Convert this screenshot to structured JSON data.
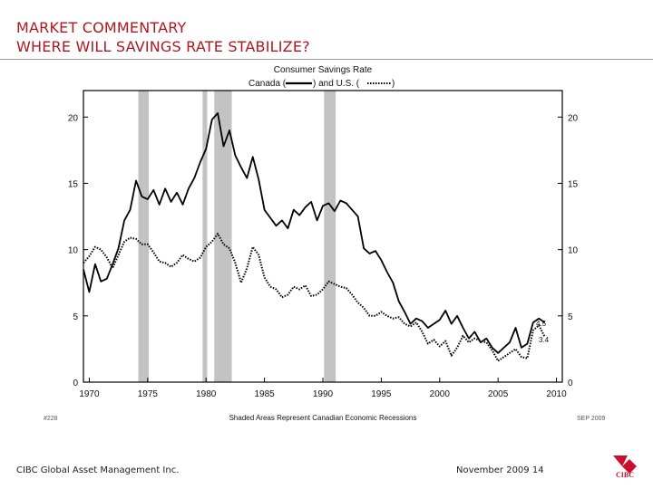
{
  "header": {
    "line1": "MARKET COMMENTARY",
    "line2": "WHERE WILL SAVINGS RATE STABILIZE?"
  },
  "footer": {
    "left": "CIBC Global Asset Management Inc.",
    "right": "November 2009 14",
    "logo_text": "CIBC"
  },
  "chart_data": {
    "type": "line",
    "title": "Consumer Savings Rate",
    "legend": [
      "Canada (",
      ") and U.S. (",
      ")"
    ],
    "series": [
      {
        "name": "Canada",
        "style": "solid",
        "x": [
          1969.5,
          1970,
          1970.5,
          1971,
          1971.5,
          1972,
          1972.5,
          1973,
          1973.5,
          1974,
          1974.5,
          1975,
          1975.5,
          1976,
          1976.5,
          1977,
          1977.5,
          1978,
          1978.5,
          1979,
          1979.5,
          1980,
          1980.5,
          1981,
          1981.5,
          1982,
          1982.5,
          1983,
          1983.5,
          1984,
          1984.5,
          1985,
          1985.5,
          1986,
          1986.5,
          1987,
          1987.5,
          1988,
          1988.5,
          1989,
          1989.5,
          1990,
          1990.5,
          1991,
          1991.5,
          1992,
          1992.5,
          1993,
          1993.5,
          1994,
          1994.5,
          1995,
          1995.5,
          1996,
          1996.5,
          1997,
          1997.5,
          1998,
          1998.5,
          1999,
          1999.5,
          2000,
          2000.5,
          2001,
          2001.5,
          2002,
          2002.5,
          2003,
          2003.5,
          2004,
          2004.5,
          2005,
          2005.5,
          2006,
          2006.5,
          2007,
          2007.5,
          2008,
          2008.5,
          2009
        ],
        "values": [
          8.5,
          6.8,
          8.9,
          7.6,
          7.8,
          8.9,
          10.1,
          12.2,
          13.0,
          15.2,
          14.0,
          13.8,
          14.5,
          13.4,
          14.6,
          13.6,
          14.3,
          13.4,
          14.6,
          15.4,
          16.6,
          17.6,
          19.8,
          20.3,
          17.8,
          19.0,
          17.1,
          16.2,
          15.4,
          17.0,
          15.3,
          13.0,
          12.4,
          11.8,
          12.2,
          11.6,
          13.0,
          12.6,
          13.2,
          13.6,
          12.2,
          13.3,
          13.5,
          12.9,
          13.7,
          13.5,
          13.0,
          12.5,
          10.1,
          9.7,
          9.9,
          9.2,
          8.3,
          7.5,
          6.1,
          5.3,
          4.4,
          4.8,
          4.6,
          4.1,
          4.4,
          4.7,
          5.4,
          4.4,
          5.0,
          4.1,
          3.3,
          3.8,
          3.0,
          3.3,
          2.6,
          2.2,
          2.6,
          3.0,
          4.1,
          2.6,
          2.9,
          4.5,
          4.8,
          4.5
        ]
      },
      {
        "name": "U.S.",
        "style": "dotted",
        "x": [
          1969.5,
          1970,
          1970.5,
          1971,
          1971.5,
          1972,
          1972.5,
          1973,
          1973.5,
          1974,
          1974.5,
          1975,
          1975.5,
          1976,
          1976.5,
          1977,
          1977.5,
          1978,
          1978.5,
          1979,
          1979.5,
          1980,
          1980.5,
          1981,
          1981.5,
          1982,
          1982.5,
          1983,
          1983.5,
          1984,
          1984.5,
          1985,
          1985.5,
          1986,
          1986.5,
          1987,
          1987.5,
          1988,
          1988.5,
          1989,
          1989.5,
          1990,
          1990.5,
          1991,
          1991.5,
          1992,
          1992.5,
          1993,
          1993.5,
          1994,
          1994.5,
          1995,
          1995.5,
          1996,
          1996.5,
          1997,
          1997.5,
          1998,
          1998.5,
          1999,
          1999.5,
          2000,
          2000.5,
          2001,
          2001.5,
          2002,
          2002.5,
          2003,
          2003.5,
          2004,
          2004.5,
          2005,
          2005.5,
          2006,
          2006.5,
          2007,
          2007.5,
          2008,
          2008.5,
          2009
        ],
        "values": [
          9.0,
          9.5,
          10.2,
          10.0,
          9.4,
          8.6,
          9.6,
          10.6,
          10.9,
          10.8,
          10.4,
          10.4,
          9.8,
          9.1,
          9.0,
          8.7,
          9.0,
          9.6,
          9.3,
          9.1,
          9.4,
          10.2,
          10.6,
          11.2,
          10.4,
          10.1,
          9.0,
          7.5,
          8.6,
          10.2,
          9.6,
          7.9,
          7.2,
          7.0,
          6.4,
          6.6,
          7.2,
          7.0,
          7.3,
          6.5,
          6.6,
          7.0,
          7.6,
          7.4,
          7.2,
          7.1,
          6.6,
          6.0,
          5.6,
          5.0,
          5.0,
          5.3,
          5.0,
          4.8,
          4.9,
          4.4,
          4.2,
          4.5,
          3.8,
          2.9,
          3.2,
          2.7,
          3.1,
          2.0,
          2.6,
          3.5,
          3.0,
          3.3,
          3.1,
          3.0,
          2.4,
          1.6,
          1.9,
          2.2,
          2.5,
          1.9,
          1.8,
          3.9,
          4.3,
          3.4
        ]
      }
    ],
    "recessions": [
      [
        1974.2,
        1975.1
      ],
      [
        1979.7,
        1980.1
      ],
      [
        1980.7,
        1982.2
      ],
      [
        1990.1,
        1991.1
      ]
    ],
    "xlim": [
      1969.5,
      2010.5
    ],
    "ylim": [
      0,
      22
    ],
    "xticks": [
      1970,
      1975,
      1980,
      1985,
      1990,
      1995,
      2000,
      2005,
      2010
    ],
    "yticks": [
      0,
      5,
      10,
      15,
      20
    ],
    "end_labels": [
      "4.5",
      "3.4"
    ],
    "note_left": "#228",
    "note_center": "Shaded Areas Represent Canadian Economic Recessions",
    "note_right": "SEP 2009",
    "grid": false,
    "legend_position": "top"
  }
}
